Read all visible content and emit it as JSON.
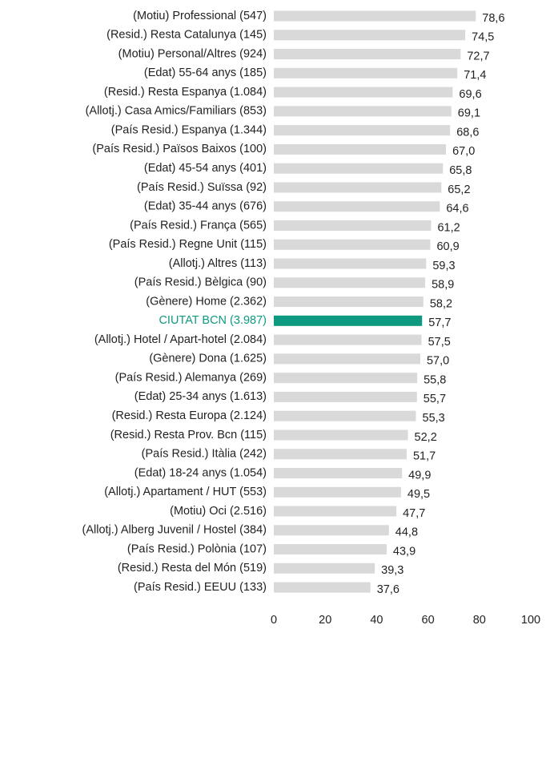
{
  "chart_data": {
    "type": "hbar",
    "categories": [
      "(Motiu) Professional (547)",
      "(Resid.) Resta Catalunya (145)",
      "(Motiu) Personal/Altres (924)",
      "(Edat) 55-64 anys (185)",
      "(Resid.) Resta Espanya (1.084)",
      "(Allotj.) Casa Amics/Familiars (853)",
      "(País Resid.) Espanya (1.344)",
      "(País Resid.) Països Baixos (100)",
      "(Edat) 45-54 anys (401)",
      "(País Resid.) Suïssa (92)",
      "(Edat) 35-44 anys (676)",
      "(País Resid.) França (565)",
      "(País Resid.) Regne Unit (115)",
      "(Allotj.) Altres (113)",
      "(País Resid.) Bèlgica (90)",
      "(Gènere) Home (2.362)",
      "CIUTAT BCN (3.987)",
      "(Allotj.) Hotel / Apart-hotel (2.084)",
      "(Gènere) Dona (1.625)",
      "(País Resid.) Alemanya (269)",
      "(Edat) 25-34 anys  (1.613)",
      "(Resid.) Resta Europa (2.124)",
      "(Resid.) Resta Prov. Bcn (115)",
      "(País Resid.) Itàlia (242)",
      "(Edat) 18-24 anys (1.054)",
      "(Allotj.) Apartament / HUT (553)",
      "(Motiu) Oci (2.516)",
      "(Allotj.) Alberg Juvenil / Hostel (384)",
      "(País Resid.) Polònia (107)",
      "(Resid.) Resta del Món (519)",
      "(País Resid.) EEUU (133)"
    ],
    "values": [
      78.6,
      74.5,
      72.7,
      71.4,
      69.6,
      69.1,
      68.6,
      67.0,
      65.8,
      65.2,
      64.6,
      61.2,
      60.9,
      59.3,
      58.9,
      58.2,
      57.7,
      57.5,
      57.0,
      55.8,
      55.7,
      55.3,
      52.2,
      51.7,
      49.9,
      49.5,
      47.7,
      44.8,
      43.9,
      39.3,
      37.6
    ],
    "value_labels": [
      "78,6",
      "74,5",
      "72,7",
      "71,4",
      "69,6",
      "69,1",
      "68,6",
      "67,0",
      "65,8",
      "65,2",
      "64,6",
      "61,2",
      "60,9",
      "59,3",
      "58,9",
      "58,2",
      "57,7",
      "57,5",
      "57,0",
      "55,8",
      "55,7",
      "55,3",
      "52,2",
      "51,7",
      "49,9",
      "49,5",
      "47,7",
      "44,8",
      "43,9",
      "39,3",
      "37,6"
    ],
    "colors": [
      "#d9d9d9",
      "#d9d9d9",
      "#d9d9d9",
      "#d9d9d9",
      "#d9d9d9",
      "#d9d9d9",
      "#d9d9d9",
      "#d9d9d9",
      "#d9d9d9",
      "#d9d9d9",
      "#d9d9d9",
      "#d9d9d9",
      "#d9d9d9",
      "#d9d9d9",
      "#d9d9d9",
      "#d9d9d9",
      "#0e9a80",
      "#d9d9d9",
      "#d9d9d9",
      "#d9d9d9",
      "#d9d9d9",
      "#d9d9d9",
      "#d9d9d9",
      "#d9d9d9",
      "#d9d9d9",
      "#d9d9d9",
      "#d9d9d9",
      "#d9d9d9",
      "#d9d9d9",
      "#d9d9d9",
      "#d9d9d9"
    ],
    "xlim": [
      0,
      100
    ],
    "xticks": [
      0,
      20,
      40,
      60,
      80,
      100
    ]
  }
}
